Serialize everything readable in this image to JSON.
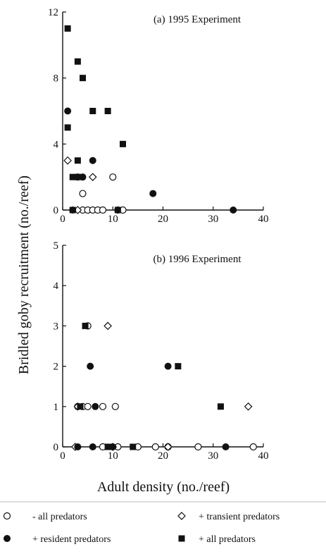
{
  "figure": {
    "ylabel": "Bridled goby recruitment (no./reef)",
    "xlabel": "Adult density (no./reef)"
  },
  "legend": [
    {
      "label": "- all predators",
      "marker": "open-circle"
    },
    {
      "label": "+ transient predators",
      "marker": "open-diamond"
    },
    {
      "label": "+ resident predators",
      "marker": "filled-circle"
    },
    {
      "label": "+ all predators",
      "marker": "filled-square"
    }
  ],
  "chart_data": [
    {
      "type": "scatter",
      "title": "(a) 1995 Experiment",
      "xlim": [
        0,
        40
      ],
      "ylim": [
        0,
        12
      ],
      "xticks": [
        0,
        10,
        20,
        30,
        40
      ],
      "yticks": [
        0,
        4,
        8,
        12
      ],
      "series": [
        {
          "name": "- all predators",
          "marker": "open-circle",
          "points": [
            [
              4,
              1
            ],
            [
              10,
              2
            ],
            [
              4,
              0
            ],
            [
              5,
              0
            ],
            [
              6,
              0
            ],
            [
              7,
              0
            ],
            [
              8,
              0
            ],
            [
              11,
              0
            ],
            [
              12,
              0
            ]
          ]
        },
        {
          "name": "+ transient predators",
          "marker": "open-diamond",
          "points": [
            [
              1,
              3
            ],
            [
              6,
              2
            ],
            [
              3,
              0
            ]
          ]
        },
        {
          "name": "+ resident predators",
          "marker": "filled-circle",
          "points": [
            [
              1,
              6
            ],
            [
              6,
              3
            ],
            [
              3,
              2
            ],
            [
              4,
              2
            ],
            [
              18,
              1
            ],
            [
              34,
              0
            ],
            [
              2,
              0
            ]
          ]
        },
        {
          "name": "+ all predators",
          "marker": "filled-square",
          "points": [
            [
              1,
              11
            ],
            [
              3,
              9
            ],
            [
              4,
              8
            ],
            [
              6,
              6
            ],
            [
              9,
              6
            ],
            [
              1,
              5
            ],
            [
              12,
              4
            ],
            [
              3,
              3
            ],
            [
              2,
              2
            ],
            [
              3,
              2
            ],
            [
              2,
              0
            ],
            [
              11,
              0
            ]
          ]
        }
      ]
    },
    {
      "type": "scatter",
      "title": "(b) 1996 Experiment",
      "xlim": [
        0,
        40
      ],
      "ylim": [
        0,
        5
      ],
      "xticks": [
        0,
        10,
        20,
        30,
        40
      ],
      "yticks": [
        0,
        1,
        2,
        3,
        4,
        5
      ],
      "series": [
        {
          "name": "- all predators",
          "marker": "open-circle",
          "points": [
            [
              5,
              3
            ],
            [
              3,
              1
            ],
            [
              4,
              1
            ],
            [
              5,
              1
            ],
            [
              8,
              1
            ],
            [
              10.5,
              1
            ],
            [
              8,
              0
            ],
            [
              11,
              0
            ],
            [
              15,
              0
            ],
            [
              18.5,
              0
            ],
            [
              21,
              0
            ],
            [
              27,
              0
            ],
            [
              38,
              0
            ]
          ]
        },
        {
          "name": "+ transient predators",
          "marker": "open-diamond",
          "points": [
            [
              9,
              3
            ],
            [
              3,
              1
            ],
            [
              37,
              1
            ],
            [
              2.5,
              0
            ],
            [
              10,
              0
            ],
            [
              21,
              0
            ]
          ]
        },
        {
          "name": "+ resident predators",
          "marker": "filled-circle",
          "points": [
            [
              5.5,
              2
            ],
            [
              21,
              2
            ],
            [
              6.5,
              1
            ],
            [
              6,
              0
            ],
            [
              10,
              0
            ],
            [
              32.5,
              0
            ],
            [
              3,
              0
            ]
          ]
        },
        {
          "name": "+ all predators",
          "marker": "filled-square",
          "points": [
            [
              4.5,
              3
            ],
            [
              23,
              2
            ],
            [
              31.5,
              1
            ],
            [
              9,
              0
            ],
            [
              9.5,
              0
            ],
            [
              14,
              0
            ],
            [
              3.5,
              1
            ]
          ]
        }
      ]
    }
  ]
}
